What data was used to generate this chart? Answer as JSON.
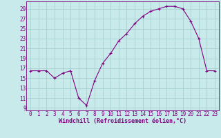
{
  "x": [
    0,
    1,
    2,
    3,
    4,
    5,
    6,
    7,
    8,
    9,
    10,
    11,
    12,
    13,
    14,
    15,
    16,
    17,
    18,
    19,
    20,
    21,
    22,
    23
  ],
  "y": [
    16.5,
    16.5,
    16.5,
    15,
    16,
    16.5,
    11,
    9.5,
    14.5,
    18,
    20,
    22.5,
    24,
    26,
    27.5,
    28.5,
    29,
    29.5,
    29.5,
    29,
    26.5,
    23,
    16.5,
    16.5
  ],
  "line_color": "#800080",
  "marker": "+",
  "bg_color": "#c8eaea",
  "grid_color": "#a8d0d0",
  "tick_label_color": "#800080",
  "xlabel": "Windchill (Refroidissement éolien,°C)",
  "xlabel_color": "#800080",
  "ylim": [
    8.5,
    30.5
  ],
  "xlim": [
    -0.5,
    23.5
  ],
  "yticks": [
    9,
    11,
    13,
    15,
    17,
    19,
    21,
    23,
    25,
    27,
    29
  ],
  "xticks": [
    0,
    1,
    2,
    3,
    4,
    5,
    6,
    7,
    8,
    9,
    10,
    11,
    12,
    13,
    14,
    15,
    16,
    17,
    18,
    19,
    20,
    21,
    22,
    23
  ],
  "font_size_axis": 5.5,
  "font_size_label": 6.0
}
